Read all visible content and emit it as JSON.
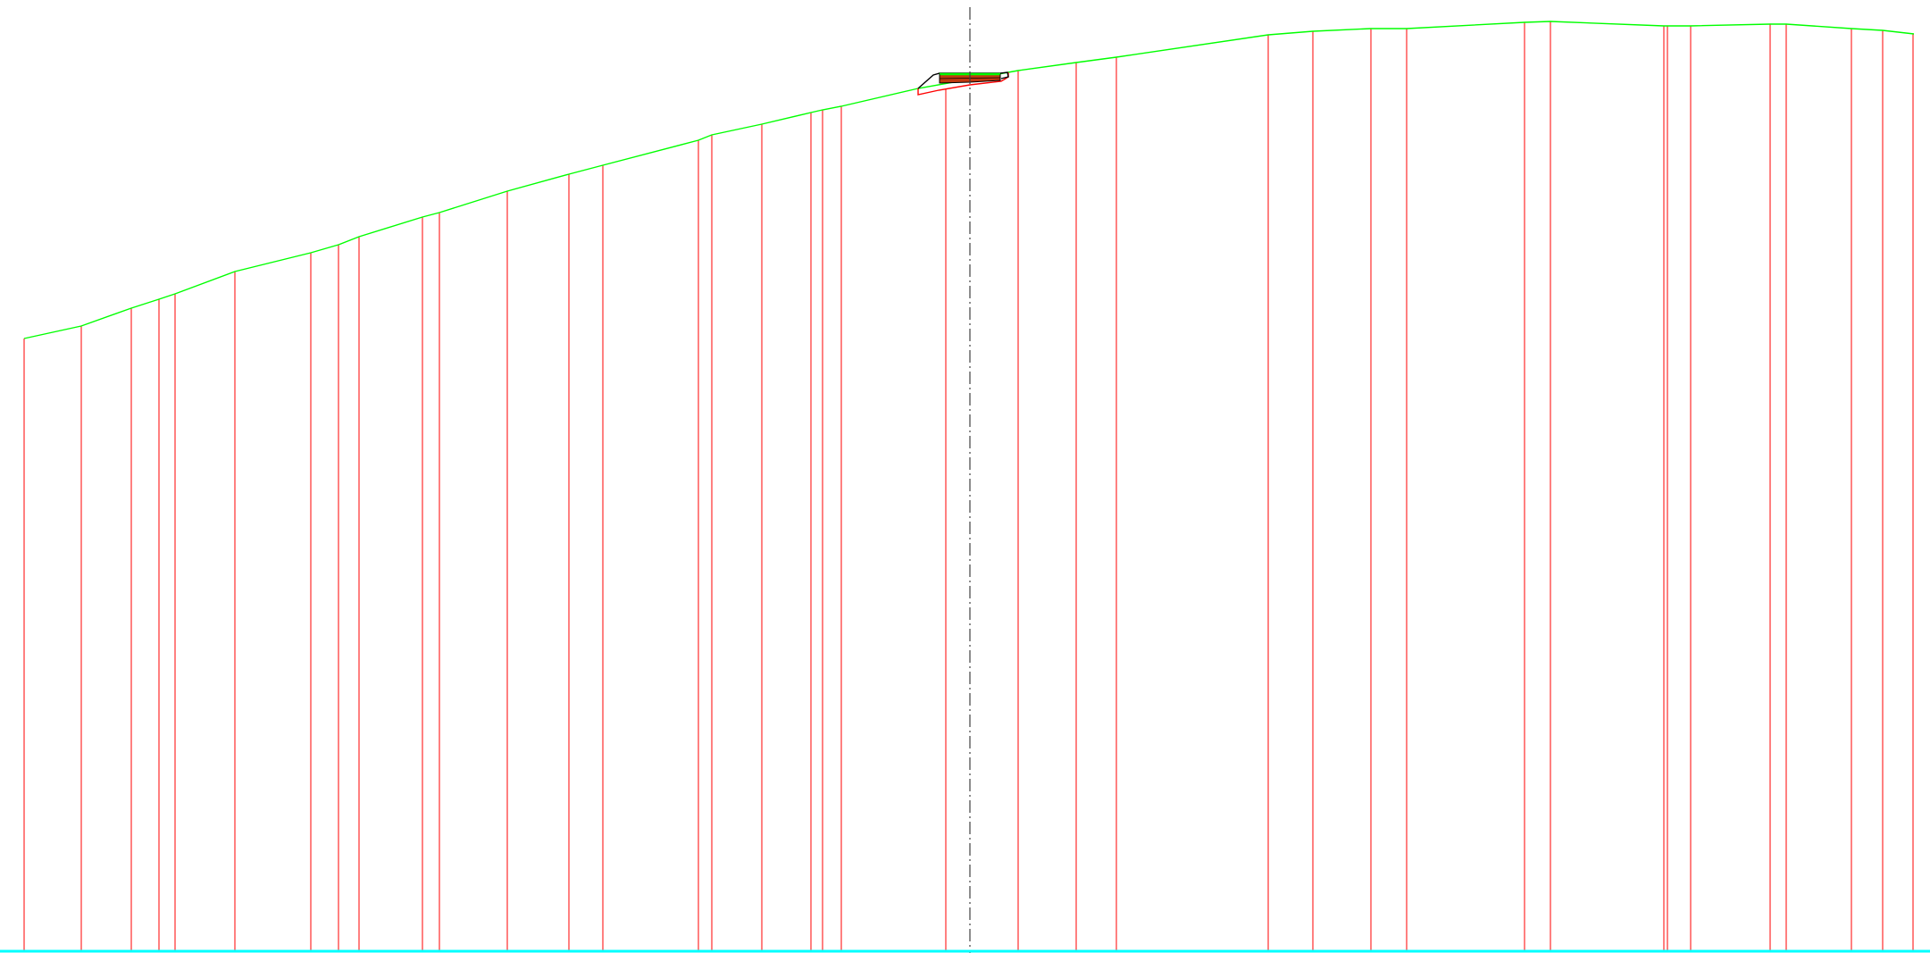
{
  "drawing": {
    "background": "#ffffff",
    "colors": {
      "ground_profile": "#00ff00",
      "station_lines": "#ff0000",
      "datum_line": "#00ffff",
      "centerline": "#404040",
      "road_outline": "#000000",
      "pavement_fill": "#c0390f",
      "pavement_top": "#00ff00",
      "subgrade": "#ff0000"
    },
    "elements": [
      "ground-profile-line",
      "station-lines",
      "centerline",
      "road-section",
      "datum-line"
    ]
  }
}
